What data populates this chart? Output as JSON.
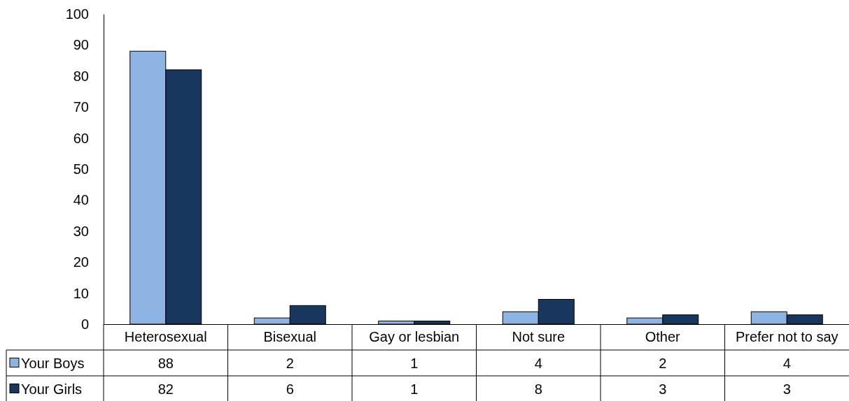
{
  "chart_data": {
    "type": "bar",
    "categories": [
      "Heterosexual",
      "Bisexual",
      "Gay or lesbian",
      "Not sure",
      "Other",
      "Prefer not to say"
    ],
    "series": [
      {
        "name": "Your Boys",
        "color": "#8eb4e3",
        "values": [
          88,
          2,
          1,
          4,
          2,
          4
        ]
      },
      {
        "name": "Your Girls",
        "color": "#17375e",
        "values": [
          82,
          6,
          1,
          8,
          3,
          3
        ]
      }
    ],
    "ylim": [
      0,
      100
    ],
    "yticks": [
      0,
      10,
      20,
      30,
      40,
      50,
      60,
      70,
      80,
      90,
      100
    ],
    "data_labels": true,
    "legend": "bottom"
  }
}
